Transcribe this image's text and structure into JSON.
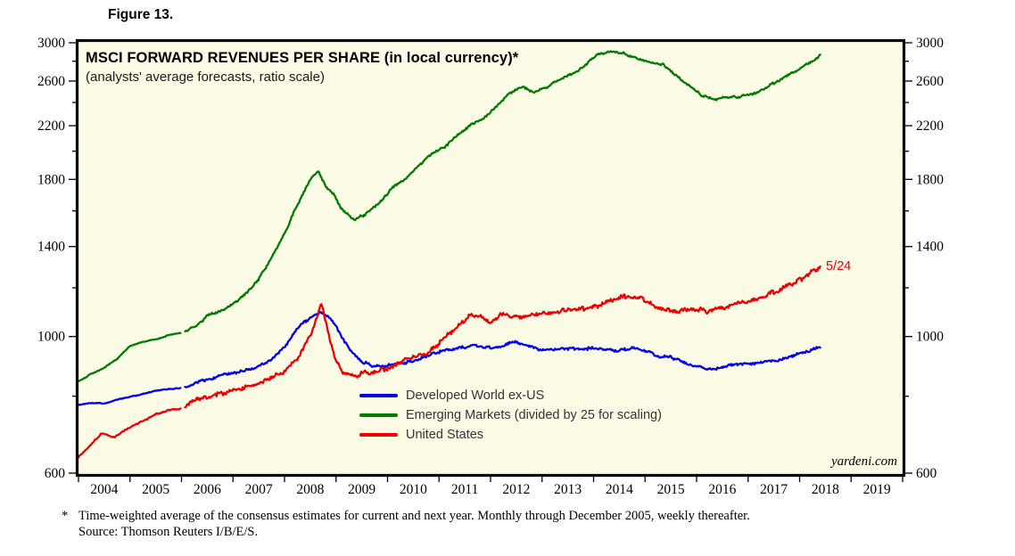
{
  "figure_label": "Figure 13.",
  "chart": {
    "title": "MSCI FORWARD REVENUES PER SHARE (in local currency)*",
    "subtitle": "(analysts' average forecasts, ratio scale)",
    "watermark": "yardeni.com",
    "annotation": "5/24",
    "legend": [
      {
        "label": "Developed World ex-US",
        "color": "#0000ee"
      },
      {
        "label": "Emerging Markets (divided by 25 for scaling)",
        "color": "#007a00"
      },
      {
        "label": "United States",
        "color": "#ee0000"
      }
    ],
    "footnote_marker": "*",
    "footnote_line1": "Time-weighted average of the consensus estimates for current and next year. Monthly through December 2005, weekly thereafter.",
    "footnote_line2": "Source: Thomson Reuters I/B/E/S."
  },
  "chart_data": {
    "type": "line",
    "title": "MSCI FORWARD REVENUES PER SHARE (in local currency)*",
    "subtitle": "(analysts' average forecasts, ratio scale)",
    "plot_bg": "#fcfce6",
    "x_axis": {
      "min": 2004,
      "max": 2020,
      "year_labels": [
        2004,
        2005,
        2006,
        2007,
        2008,
        2009,
        2010,
        2011,
        2012,
        2013,
        2014,
        2015,
        2016,
        2017,
        2018,
        2019
      ]
    },
    "y_axis": {
      "scale": "log",
      "min": 600,
      "max": 3000,
      "labeled_ticks": [
        600,
        1000,
        1400,
        1800,
        2200,
        2600,
        3000
      ],
      "minor_ticks": [
        800,
        1200,
        1600,
        2000,
        2400,
        2800
      ],
      "labels_both_sides": true
    },
    "data_break_note": "monthly through Dec 2005, weekly thereafter",
    "end_label": {
      "series": "United States",
      "text": "5/24",
      "x": 2018.4,
      "y": 1300
    },
    "series": [
      {
        "name": "Developed World ex-US",
        "color": "#0000ee",
        "points": [
          [
            2004.0,
            775
          ],
          [
            2004.25,
            780
          ],
          [
            2004.5,
            778
          ],
          [
            2004.75,
            790
          ],
          [
            2005.0,
            798
          ],
          [
            2005.25,
            806
          ],
          [
            2005.5,
            816
          ],
          [
            2005.75,
            821
          ],
          [
            2006.0,
            825
          ],
          [
            2006.25,
            838
          ],
          [
            2006.5,
            852
          ],
          [
            2006.75,
            864
          ],
          [
            2007.0,
            873
          ],
          [
            2007.25,
            881
          ],
          [
            2007.5,
            892
          ],
          [
            2007.75,
            920
          ],
          [
            2008.0,
            962
          ],
          [
            2008.25,
            1030
          ],
          [
            2008.5,
            1075
          ],
          [
            2008.7,
            1095
          ],
          [
            2008.85,
            1078
          ],
          [
            2009.0,
            1038
          ],
          [
            2009.15,
            985
          ],
          [
            2009.3,
            945
          ],
          [
            2009.5,
            912
          ],
          [
            2009.7,
            898
          ],
          [
            2009.9,
            895
          ],
          [
            2010.1,
            900
          ],
          [
            2010.3,
            906
          ],
          [
            2010.5,
            913
          ],
          [
            2010.7,
            926
          ],
          [
            2010.9,
            940
          ],
          [
            2011.1,
            948
          ],
          [
            2011.3,
            956
          ],
          [
            2011.5,
            962
          ],
          [
            2011.7,
            966
          ],
          [
            2011.9,
            960
          ],
          [
            2012.1,
            958
          ],
          [
            2012.3,
            968
          ],
          [
            2012.45,
            980
          ],
          [
            2012.6,
            970
          ],
          [
            2012.8,
            960
          ],
          [
            2013.0,
            950
          ],
          [
            2013.25,
            953
          ],
          [
            2013.5,
            956
          ],
          [
            2013.75,
            955
          ],
          [
            2014.0,
            956
          ],
          [
            2014.25,
            952
          ],
          [
            2014.5,
            950
          ],
          [
            2014.75,
            956
          ],
          [
            2015.0,
            950
          ],
          [
            2015.25,
            930
          ],
          [
            2015.5,
            925
          ],
          [
            2015.75,
            910
          ],
          [
            2016.0,
            895
          ],
          [
            2016.3,
            882
          ],
          [
            2016.6,
            897
          ],
          [
            2016.85,
            902
          ],
          [
            2017.1,
            905
          ],
          [
            2017.35,
            908
          ],
          [
            2017.6,
            915
          ],
          [
            2017.85,
            928
          ],
          [
            2018.1,
            945
          ],
          [
            2018.25,
            952
          ],
          [
            2018.4,
            962
          ]
        ]
      },
      {
        "name": "Emerging Markets (divided by 25 for scaling)",
        "color": "#007a00",
        "points": [
          [
            2004.0,
            845
          ],
          [
            2004.25,
            870
          ],
          [
            2004.5,
            890
          ],
          [
            2004.75,
            920
          ],
          [
            2005.0,
            965
          ],
          [
            2005.25,
            980
          ],
          [
            2005.5,
            990
          ],
          [
            2005.75,
            1005
          ],
          [
            2006.0,
            1015
          ],
          [
            2006.25,
            1035
          ],
          [
            2006.5,
            1080
          ],
          [
            2006.75,
            1100
          ],
          [
            2007.0,
            1130
          ],
          [
            2007.25,
            1175
          ],
          [
            2007.5,
            1240
          ],
          [
            2007.75,
            1340
          ],
          [
            2008.0,
            1470
          ],
          [
            2008.25,
            1640
          ],
          [
            2008.5,
            1790
          ],
          [
            2008.65,
            1860
          ],
          [
            2008.8,
            1755
          ],
          [
            2008.95,
            1700
          ],
          [
            2009.1,
            1615
          ],
          [
            2009.35,
            1545
          ],
          [
            2009.6,
            1585
          ],
          [
            2009.85,
            1655
          ],
          [
            2010.1,
            1745
          ],
          [
            2010.35,
            1805
          ],
          [
            2010.6,
            1890
          ],
          [
            2010.85,
            1975
          ],
          [
            2011.1,
            2030
          ],
          [
            2011.35,
            2120
          ],
          [
            2011.6,
            2200
          ],
          [
            2011.85,
            2255
          ],
          [
            2012.1,
            2355
          ],
          [
            2012.35,
            2480
          ],
          [
            2012.6,
            2540
          ],
          [
            2012.85,
            2490
          ],
          [
            2013.1,
            2545
          ],
          [
            2013.35,
            2620
          ],
          [
            2013.6,
            2675
          ],
          [
            2013.85,
            2765
          ],
          [
            2014.1,
            2880
          ],
          [
            2014.35,
            2900
          ],
          [
            2014.6,
            2880
          ],
          [
            2014.85,
            2835
          ],
          [
            2015.1,
            2790
          ],
          [
            2015.35,
            2770
          ],
          [
            2015.6,
            2650
          ],
          [
            2015.85,
            2555
          ],
          [
            2016.1,
            2465
          ],
          [
            2016.35,
            2430
          ],
          [
            2016.6,
            2445
          ],
          [
            2016.85,
            2450
          ],
          [
            2017.1,
            2480
          ],
          [
            2017.35,
            2540
          ],
          [
            2017.6,
            2610
          ],
          [
            2017.85,
            2680
          ],
          [
            2018.1,
            2750
          ],
          [
            2018.25,
            2795
          ],
          [
            2018.4,
            2865
          ]
        ]
      },
      {
        "name": "United States",
        "color": "#ee0000",
        "points": [
          [
            2004.0,
            638
          ],
          [
            2004.2,
            662
          ],
          [
            2004.45,
            697
          ],
          [
            2004.7,
            686
          ],
          [
            2005.0,
            712
          ],
          [
            2005.25,
            728
          ],
          [
            2005.5,
            748
          ],
          [
            2005.75,
            758
          ],
          [
            2006.0,
            765
          ],
          [
            2006.25,
            788
          ],
          [
            2006.5,
            797
          ],
          [
            2006.75,
            805
          ],
          [
            2007.0,
            818
          ],
          [
            2007.25,
            830
          ],
          [
            2007.5,
            840
          ],
          [
            2007.75,
            855
          ],
          [
            2008.0,
            880
          ],
          [
            2008.25,
            920
          ],
          [
            2008.5,
            1000
          ],
          [
            2008.65,
            1090
          ],
          [
            2008.72,
            1135
          ],
          [
            2008.8,
            1055
          ],
          [
            2008.9,
            975
          ],
          [
            2009.0,
            918
          ],
          [
            2009.1,
            878
          ],
          [
            2009.25,
            870
          ],
          [
            2009.4,
            858
          ],
          [
            2009.55,
            876
          ],
          [
            2009.7,
            868
          ],
          [
            2009.85,
            882
          ],
          [
            2010.0,
            890
          ],
          [
            2010.2,
            905
          ],
          [
            2010.4,
            922
          ],
          [
            2010.6,
            930
          ],
          [
            2010.8,
            945
          ],
          [
            2011.0,
            975
          ],
          [
            2011.2,
            1010
          ],
          [
            2011.4,
            1045
          ],
          [
            2011.6,
            1080
          ],
          [
            2011.8,
            1075
          ],
          [
            2012.0,
            1050
          ],
          [
            2012.2,
            1085
          ],
          [
            2012.4,
            1080
          ],
          [
            2012.6,
            1075
          ],
          [
            2012.8,
            1085
          ],
          [
            2013.0,
            1090
          ],
          [
            2013.2,
            1095
          ],
          [
            2013.4,
            1100
          ],
          [
            2013.6,
            1105
          ],
          [
            2013.8,
            1112
          ],
          [
            2014.0,
            1120
          ],
          [
            2014.2,
            1130
          ],
          [
            2014.4,
            1150
          ],
          [
            2014.6,
            1165
          ],
          [
            2014.8,
            1160
          ],
          [
            2015.0,
            1145
          ],
          [
            2015.2,
            1120
          ],
          [
            2015.4,
            1110
          ],
          [
            2015.6,
            1095
          ],
          [
            2015.8,
            1105
          ],
          [
            2016.0,
            1108
          ],
          [
            2016.2,
            1098
          ],
          [
            2016.4,
            1110
          ],
          [
            2016.6,
            1118
          ],
          [
            2016.8,
            1130
          ],
          [
            2017.0,
            1140
          ],
          [
            2017.2,
            1150
          ],
          [
            2017.4,
            1170
          ],
          [
            2017.6,
            1190
          ],
          [
            2017.8,
            1210
          ],
          [
            2018.0,
            1235
          ],
          [
            2018.15,
            1258
          ],
          [
            2018.3,
            1285
          ],
          [
            2018.4,
            1300
          ]
        ]
      }
    ]
  }
}
